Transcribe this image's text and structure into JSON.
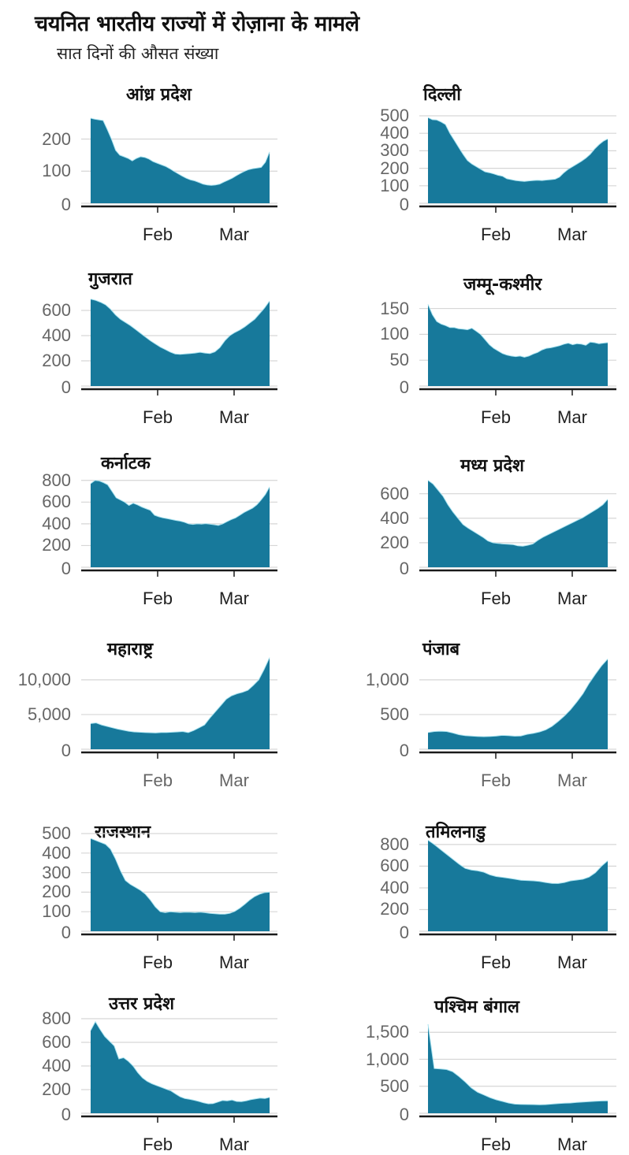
{
  "header": {
    "title": "चयनित भारतीय राज्यों में रोज़ाना के मामले",
    "subtitle": "सात दिनों की औसत संख्या"
  },
  "colors": {
    "area": "#17799b",
    "edge": "#a9e3f0",
    "grid": "#d6d6d6",
    "axis": "#1a1a1a",
    "tick_text": "#666666"
  },
  "x_ticks": [
    "Feb",
    "Mar"
  ],
  "chart_data": [
    {
      "type": "area",
      "title": "आंध्र प्रदेश",
      "xlabel": "",
      "ylabel": "",
      "yticks": [
        0,
        100,
        200
      ],
      "ytick_labels": [
        "0",
        "100",
        "200"
      ],
      "ylim": [
        0,
        270
      ],
      "x_ticks": [
        "Feb",
        "Mar"
      ],
      "values": [
        265,
        262,
        260,
        258,
        230,
        200,
        165,
        150,
        145,
        140,
        132,
        140,
        145,
        143,
        138,
        130,
        125,
        120,
        115,
        108,
        100,
        92,
        85,
        78,
        73,
        70,
        65,
        60,
        57,
        56,
        57,
        60,
        66,
        72,
        78,
        86,
        93,
        100,
        105,
        108,
        110,
        112,
        128,
        160
      ]
    },
    {
      "type": "area",
      "title": "दिल्ली",
      "xlabel": "",
      "ylabel": "",
      "yticks": [
        0,
        100,
        200,
        300,
        400,
        500
      ],
      "ytick_labels": [
        "0",
        "100",
        "200",
        "300",
        "400",
        "500"
      ],
      "ylim": [
        0,
        500
      ],
      "x_ticks": [
        "Feb",
        "Mar"
      ],
      "values": [
        490,
        478,
        476,
        465,
        450,
        400,
        360,
        320,
        280,
        245,
        225,
        210,
        195,
        180,
        175,
        168,
        160,
        155,
        140,
        135,
        130,
        127,
        125,
        128,
        130,
        132,
        130,
        133,
        135,
        138,
        150,
        175,
        195,
        210,
        225,
        240,
        258,
        280,
        310,
        335,
        355,
        368
      ]
    },
    {
      "type": "area",
      "title": "गुजरात",
      "xlabel": "",
      "ylabel": "",
      "yticks": [
        0,
        200,
        400,
        600
      ],
      "ytick_labels": [
        "0",
        "200",
        "400",
        "600"
      ],
      "ylim": [
        0,
        700
      ],
      "x_ticks": [
        "Feb",
        "Mar"
      ],
      "values": [
        690,
        680,
        665,
        645,
        610,
        565,
        530,
        505,
        480,
        450,
        420,
        390,
        360,
        335,
        310,
        290,
        270,
        255,
        252,
        255,
        258,
        262,
        268,
        262,
        258,
        272,
        305,
        360,
        400,
        425,
        445,
        470,
        500,
        530,
        575,
        620,
        675
      ]
    },
    {
      "type": "area",
      "title": "जम्मू-कश्मीर",
      "xlabel": "",
      "ylabel": "",
      "yticks": [
        0,
        50,
        100,
        150
      ],
      "ytick_labels": [
        "0",
        "50",
        "100",
        "150"
      ],
      "ylim": [
        0,
        160
      ],
      "x_ticks": [
        "Feb",
        "Mar"
      ],
      "values": [
        158,
        138,
        125,
        120,
        117,
        113,
        113,
        111,
        110,
        109,
        112,
        106,
        100,
        90,
        80,
        73,
        68,
        63,
        60,
        58,
        57,
        58,
        56,
        58,
        62,
        65,
        70,
        73,
        74,
        76,
        78,
        81,
        83,
        80,
        82,
        81,
        79,
        85,
        84,
        82,
        83,
        84
      ]
    },
    {
      "type": "area",
      "title": "कर्नाटक",
      "xlabel": "",
      "ylabel": "",
      "yticks": [
        0,
        200,
        400,
        600,
        800
      ],
      "ytick_labels": [
        "0",
        "200",
        "400",
        "600",
        "800"
      ],
      "ylim": [
        0,
        820
      ],
      "x_ticks": [
        "Feb",
        "Mar"
      ],
      "values": [
        770,
        800,
        795,
        780,
        760,
        700,
        640,
        620,
        600,
        570,
        590,
        575,
        555,
        540,
        525,
        480,
        465,
        455,
        448,
        440,
        432,
        425,
        415,
        400,
        395,
        400,
        398,
        402,
        398,
        392,
        385,
        400,
        420,
        440,
        455,
        480,
        505,
        525,
        545,
        575,
        620,
        670,
        740
      ]
    },
    {
      "type": "area",
      "title": "मध्य प्रदेश",
      "xlabel": "",
      "ylabel": "",
      "yticks": [
        0,
        200,
        400,
        600
      ],
      "ytick_labels": [
        "0",
        "200",
        "400",
        "600"
      ],
      "ylim": [
        0,
        720
      ],
      "x_ticks": [
        "Feb",
        "Mar"
      ],
      "values": [
        710,
        680,
        630,
        580,
        510,
        450,
        400,
        350,
        320,
        295,
        270,
        245,
        215,
        200,
        195,
        190,
        188,
        185,
        175,
        172,
        180,
        190,
        220,
        245,
        265,
        285,
        305,
        325,
        345,
        365,
        385,
        405,
        430,
        455,
        480,
        510,
        555
      ]
    },
    {
      "type": "area",
      "title": "महाराष्ट्र",
      "xlabel": "",
      "ylabel": "",
      "yticks": [
        0,
        5000,
        10000
      ],
      "ytick_labels": [
        "0",
        "5,000",
        "10,000"
      ],
      "ylim": [
        0,
        13500
      ],
      "x_ticks": [
        "Feb",
        "Mar"
      ],
      "values": [
        3700,
        3800,
        3500,
        3300,
        3100,
        2900,
        2750,
        2600,
        2500,
        2450,
        2400,
        2380,
        2350,
        2400,
        2420,
        2450,
        2500,
        2550,
        2400,
        2700,
        3100,
        3500,
        4500,
        5400,
        6300,
        7200,
        7700,
        8000,
        8200,
        8500,
        9200,
        10000,
        11500,
        13200
      ]
    },
    {
      "type": "area",
      "title": "पंजाब",
      "xlabel": "",
      "ylabel": "",
      "yticks": [
        0,
        500,
        1000
      ],
      "ytick_labels": [
        "0",
        "500",
        "1,000"
      ],
      "ylim": [
        0,
        1350
      ],
      "x_ticks": [
        "Feb",
        "Mar"
      ],
      "values": [
        240,
        255,
        260,
        255,
        235,
        210,
        195,
        190,
        185,
        182,
        185,
        190,
        200,
        195,
        188,
        192,
        215,
        230,
        250,
        280,
        330,
        400,
        480,
        570,
        680,
        800,
        950,
        1080,
        1200,
        1300
      ]
    },
    {
      "type": "area",
      "title": "राजस्थान",
      "xlabel": "",
      "ylabel": "",
      "yticks": [
        0,
        100,
        200,
        300,
        400,
        500
      ],
      "ytick_labels": [
        "0",
        "100",
        "200",
        "300",
        "400",
        "500"
      ],
      "ylim": [
        0,
        500
      ],
      "x_ticks": [
        "Feb",
        "Mar"
      ],
      "values": [
        475,
        465,
        455,
        445,
        420,
        370,
        310,
        260,
        240,
        225,
        210,
        190,
        160,
        125,
        100,
        95,
        100,
        98,
        96,
        98,
        97,
        96,
        98,
        95,
        92,
        90,
        88,
        88,
        92,
        102,
        118,
        138,
        160,
        178,
        190,
        198,
        200
      ]
    },
    {
      "type": "area",
      "title": "तमिलनाडु",
      "xlabel": "",
      "ylabel": "",
      "yticks": [
        0,
        200,
        400,
        600,
        800
      ],
      "ytick_labels": [
        "0",
        "200",
        "400",
        "600",
        "800"
      ],
      "ylim": [
        0,
        850
      ],
      "x_ticks": [
        "Feb",
        "Mar"
      ],
      "values": [
        840,
        800,
        755,
        710,
        665,
        620,
        580,
        565,
        558,
        545,
        520,
        505,
        498,
        490,
        480,
        470,
        468,
        465,
        460,
        450,
        442,
        440,
        450,
        465,
        472,
        480,
        500,
        540,
        600,
        650
      ]
    },
    {
      "type": "area",
      "title": "उत्तर प्रदेश",
      "xlabel": "",
      "ylabel": "",
      "yticks": [
        0,
        200,
        400,
        600,
        800
      ],
      "ytick_labels": [
        "0",
        "200",
        "400",
        "600",
        "800"
      ],
      "ylim": [
        0,
        820
      ],
      "x_ticks": [
        "Feb",
        "Mar"
      ],
      "values": [
        700,
        775,
        710,
        650,
        610,
        570,
        460,
        470,
        440,
        400,
        345,
        300,
        270,
        250,
        235,
        220,
        205,
        190,
        165,
        140,
        125,
        118,
        110,
        100,
        88,
        80,
        82,
        95,
        108,
        105,
        112,
        100,
        98,
        105,
        115,
        122,
        128,
        125,
        135
      ]
    },
    {
      "type": "area",
      "title": "पश्चिम बंगाल",
      "xlabel": "",
      "ylabel": "",
      "yticks": [
        0,
        500,
        1000,
        1500
      ],
      "ytick_labels": [
        "0",
        "500",
        "1,000",
        "1,500"
      ],
      "ylim": [
        0,
        1650
      ],
      "x_ticks": [
        "Feb",
        "Mar"
      ],
      "values": [
        1650,
        830,
        820,
        810,
        770,
        680,
        580,
        470,
        390,
        340,
        290,
        250,
        220,
        190,
        170,
        165,
        162,
        160,
        158,
        160,
        170,
        180,
        185,
        190,
        200,
        208,
        215,
        222,
        228,
        230
      ]
    }
  ]
}
